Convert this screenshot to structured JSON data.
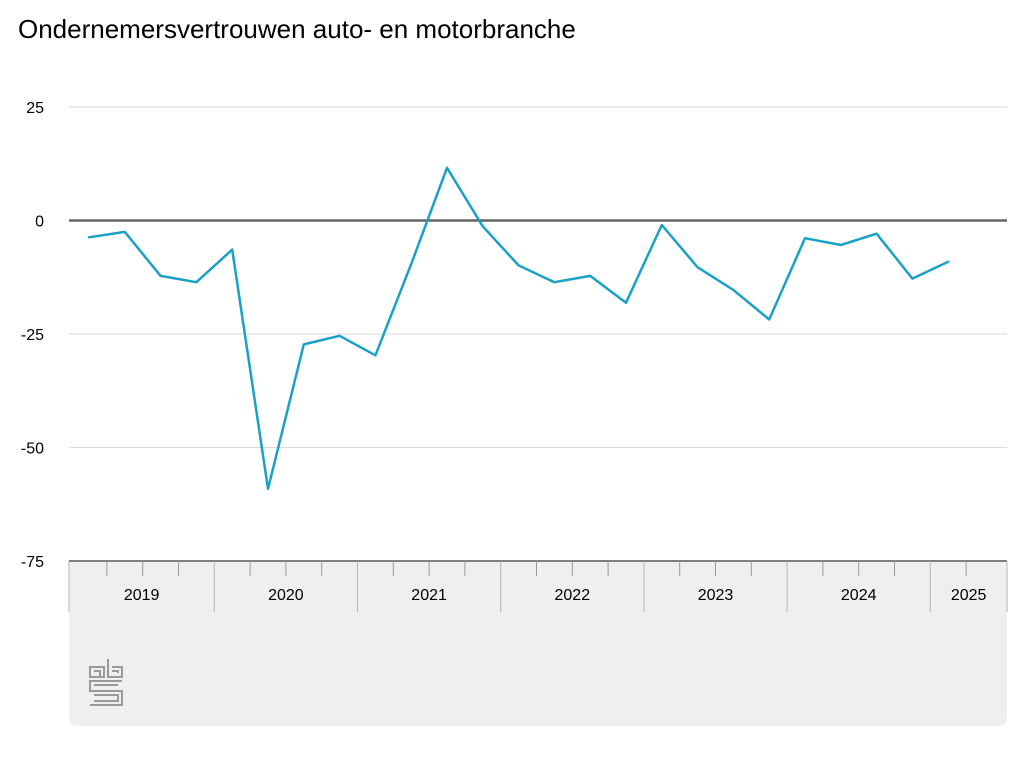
{
  "page": {
    "title": "Ondernemersvertrouwen auto- en motorbranche"
  },
  "logo": {
    "icon": "cbs-logo-icon"
  },
  "colors": {
    "line": "#1aa1c6",
    "zero_line": "#666666",
    "grid": "#d9d9d9",
    "axis_band": "#efefef"
  },
  "chart_data": {
    "type": "line",
    "title": "Ondernemersvertrouwen auto- en motorbranche",
    "xlabel": "",
    "ylabel": "",
    "ylim": [
      -75,
      25
    ],
    "yticks": [
      25,
      0,
      -25,
      -50,
      -75
    ],
    "ytick_labels": [
      "25",
      "0",
      "-25",
      "-50",
      "-75"
    ],
    "grid": true,
    "legend": "none",
    "x": [
      "2019 Q1",
      "2019 Q2",
      "2019 Q3",
      "2019 Q4",
      "2020 Q1",
      "2020 Q2",
      "2020 Q3",
      "2020 Q4",
      "2021 Q1",
      "2021 Q2",
      "2021 Q3",
      "2021 Q4",
      "2022 Q1",
      "2022 Q2",
      "2022 Q3",
      "2022 Q4",
      "2023 Q1",
      "2023 Q2",
      "2023 Q3",
      "2023 Q4",
      "2024 Q1",
      "2024 Q2",
      "2024 Q3",
      "2024 Q4",
      "2025 Q1",
      "2025 Q2"
    ],
    "years": [
      "2019",
      "2020",
      "2021",
      "2022",
      "2023",
      "2024",
      "2025"
    ],
    "series": [
      {
        "values": [
          -3.7,
          -2.5,
          -12.2,
          -13.6,
          -6.4,
          -59.1,
          -27.3,
          -25.4,
          -29.7,
          -9.6,
          11.6,
          -1.3,
          -9.9,
          -13.6,
          -12.2,
          -18.1,
          -1.0,
          -10.3,
          -15.3,
          -21.8,
          -3.9,
          -5.4,
          -2.9,
          -12.8,
          -9.1,
          null
        ]
      }
    ]
  }
}
